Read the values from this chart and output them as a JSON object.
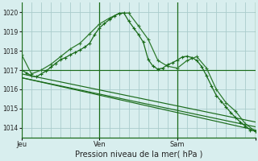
{
  "xlabel": "Pression niveau de la mer( hPa )",
  "bg_color": "#d8eeee",
  "grid_color": "#aacccc",
  "line_dark": "#1a6b1a",
  "line_mid": "#2d7a2d",
  "xlim": [
    0,
    48
  ],
  "ylim": [
    1013.5,
    1020.5
  ],
  "yticks": [
    1014,
    1015,
    1016,
    1017,
    1018,
    1019,
    1020
  ],
  "grid_x": [
    0,
    2,
    4,
    6,
    8,
    10,
    12,
    14,
    16,
    18,
    20,
    22,
    24,
    26,
    28,
    30,
    32,
    34,
    36,
    38,
    40,
    42,
    44,
    46,
    48
  ],
  "day_vlines": [
    0,
    16,
    32,
    48
  ],
  "xtick_pos": [
    0,
    16,
    32,
    48
  ],
  "xtick_labels": [
    "Jeu",
    "Ven",
    "Sam",
    ""
  ],
  "series1_x": [
    0,
    1,
    2,
    3,
    4,
    5,
    6,
    7,
    8,
    9,
    10,
    11,
    12,
    13,
    14,
    15,
    16,
    17,
    18,
    19,
    20,
    21,
    22,
    23,
    24,
    25,
    26,
    27,
    28,
    29,
    30,
    31,
    32,
    33,
    34,
    35,
    36,
    37,
    38,
    39,
    40,
    41,
    42,
    43,
    44,
    45,
    46,
    47,
    48
  ],
  "series1_y": [
    1017.0,
    1016.85,
    1016.7,
    1016.65,
    1016.8,
    1016.95,
    1017.15,
    1017.35,
    1017.55,
    1017.65,
    1017.8,
    1017.92,
    1018.05,
    1018.2,
    1018.4,
    1018.85,
    1019.2,
    1019.42,
    1019.62,
    1019.8,
    1019.95,
    1019.97,
    1019.55,
    1019.2,
    1018.85,
    1018.45,
    1017.55,
    1017.2,
    1017.05,
    1017.1,
    1017.28,
    1017.38,
    1017.52,
    1017.68,
    1017.72,
    1017.65,
    1017.5,
    1017.18,
    1016.7,
    1016.18,
    1015.68,
    1015.38,
    1015.08,
    1014.78,
    1014.52,
    1014.28,
    1014.08,
    1013.88,
    1013.82
  ],
  "series2_x": [
    0,
    2,
    4,
    6,
    8,
    10,
    12,
    14,
    16,
    18,
    20,
    22,
    24,
    26,
    28,
    30,
    32,
    34,
    36,
    38,
    40,
    42,
    44,
    46,
    48
  ],
  "series2_y": [
    1017.8,
    1016.8,
    1017.0,
    1017.3,
    1017.7,
    1018.1,
    1018.4,
    1018.9,
    1019.4,
    1019.7,
    1019.95,
    1019.97,
    1019.3,
    1018.6,
    1017.5,
    1017.2,
    1017.1,
    1017.5,
    1017.7,
    1017.1,
    1016.0,
    1015.3,
    1014.85,
    1014.2,
    1013.82
  ],
  "series3_x": [
    0,
    48
  ],
  "series3_y": [
    1017.0,
    1017.0
  ],
  "series4_x": [
    0,
    48
  ],
  "series4_y": [
    1016.8,
    1014.3
  ],
  "series5_x": [
    0,
    48
  ],
  "series5_y": [
    1016.6,
    1013.88
  ],
  "series6_x": [
    0,
    48
  ],
  "series6_y": [
    1016.6,
    1014.05
  ]
}
